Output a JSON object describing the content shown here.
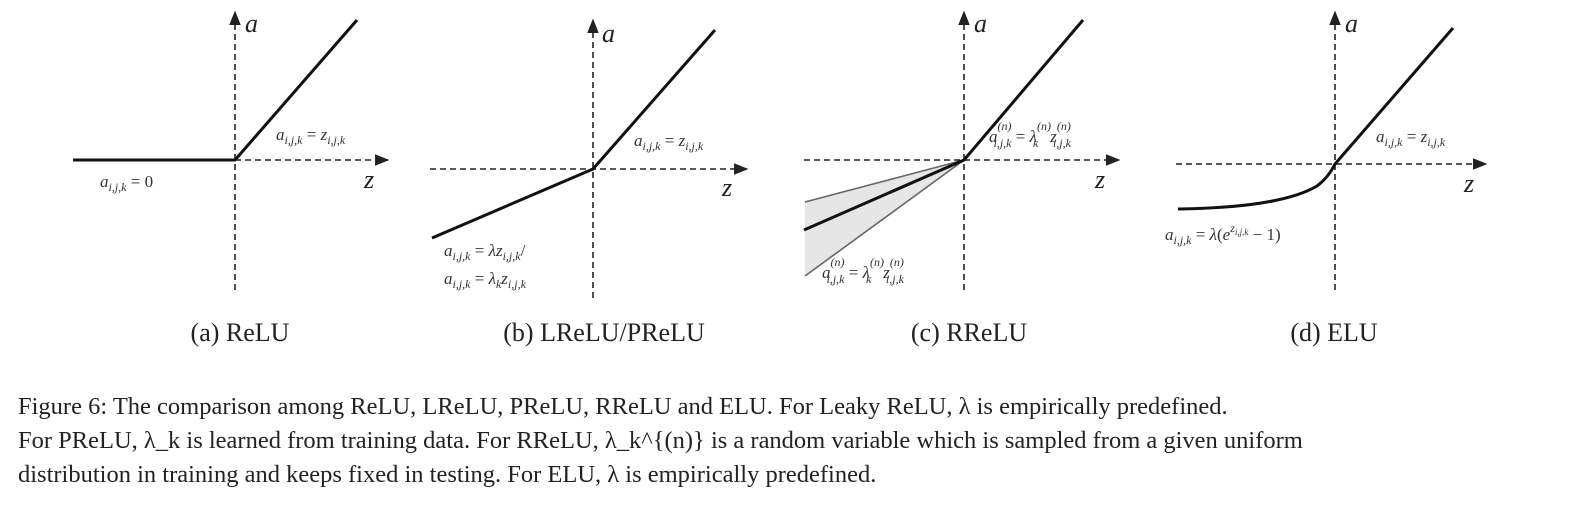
{
  "axes": {
    "x_label": "z",
    "y_label": "a"
  },
  "panels": [
    {
      "caption": "(a) ReLU",
      "function": "ReLU",
      "labels": {
        "positive": "a_{i,j,k} = z_{i,j,k}",
        "negative": "a_{i,j,k} = 0"
      }
    },
    {
      "caption": "(b) LReLU/PReLU",
      "function": "LReLU/PReLU",
      "labels": {
        "positive": "a_{i,j,k} = z_{i,j,k}",
        "negative_1": "a_{i,j,k} = λz_{i,j,k}/",
        "negative_2": "a_{i,j,k} = λ_k z_{i,j,k}"
      }
    },
    {
      "caption": "(c) RReLU",
      "function": "RReLU",
      "labels": {
        "positive": "a^{(n)}_{i,j,k} = λ^{(n)}_k z^{(n)}_{i,j,k}",
        "negative": "a^{(n)}_{i,j,k} = λ^{(n)}_k z^{(n)}_{i,j,k}"
      }
    },
    {
      "caption": "(d) ELU",
      "function": "ELU",
      "labels": {
        "positive": "a_{i,j,k} = z_{i,j,k}",
        "negative": "a_{i,j,k} = λ(e^{z_{i,j,k}} − 1)"
      }
    }
  ],
  "figure_caption": {
    "label": "Figure 6:",
    "line1": "The comparison among ReLU, LReLU, PReLU, RReLU and ELU. For Leaky ReLU, λ is empirically predefined.",
    "line2": "For PReLU, λ_k is learned from training data. For RReLU, λ_k^{(n)} is a random variable which is sampled from a given uniform",
    "line3": "distribution in training and keeps fixed in testing. For ELU, λ is empirically predefined."
  },
  "colors": {
    "curve": "#111111",
    "axis": "#222222",
    "shade": "#e6e6e6",
    "shade_edge": "#777777"
  }
}
